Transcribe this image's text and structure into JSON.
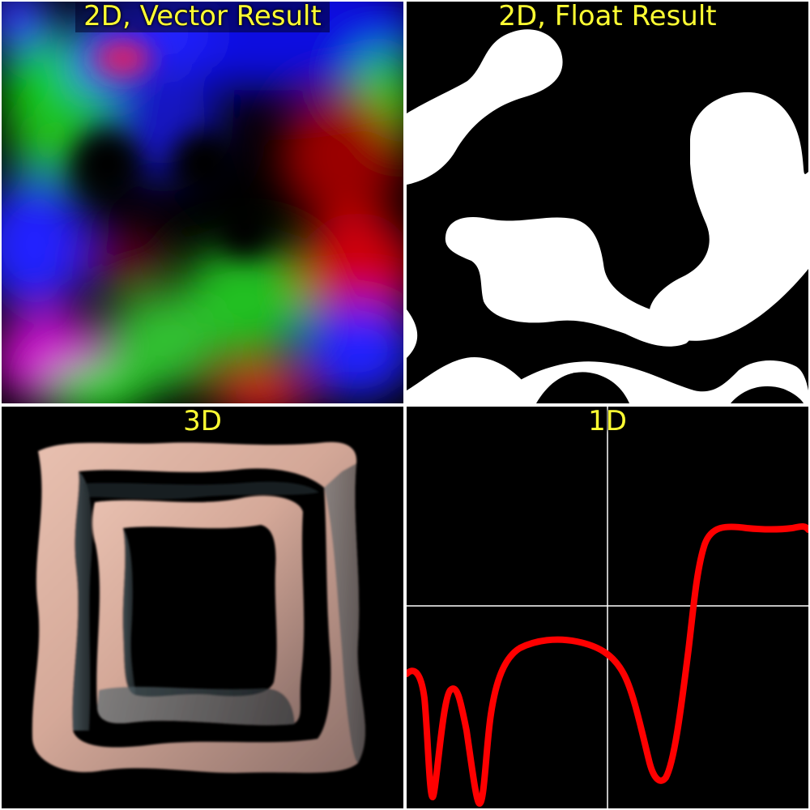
{
  "colors": {
    "title": "#ffff33",
    "curve": "#ff0000",
    "axes": "#ffffff",
    "surface": "#d4a898",
    "background": "#000000",
    "separator": "#ffffff"
  },
  "panels": {
    "vector2d": {
      "title": "2D, Vector Result"
    },
    "float2d": {
      "title": "2D, Float Result"
    },
    "volume3d": {
      "title": "3D"
    },
    "line1d": {
      "title": "1D"
    }
  }
}
